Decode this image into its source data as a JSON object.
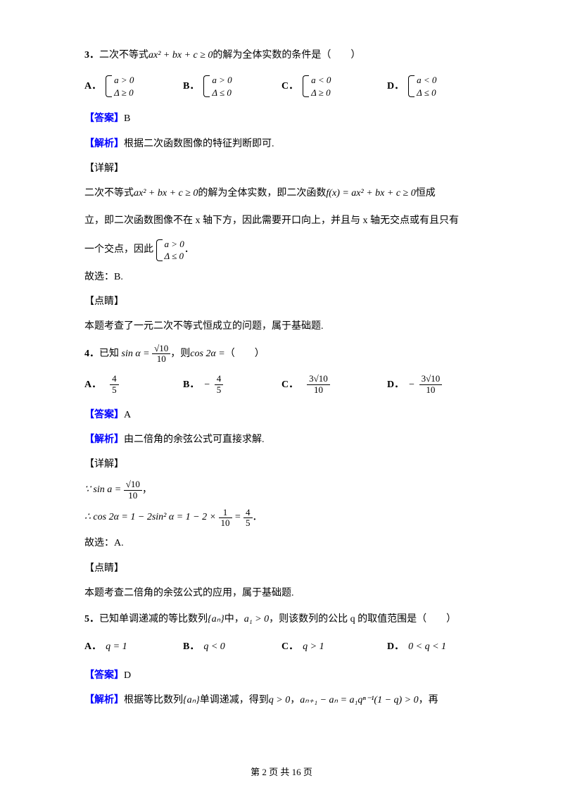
{
  "q3": {
    "number": "3．",
    "stem_pre": "二次不等式",
    "stem_expr": "ax² + bx + c ≥ 0",
    "stem_post": "的解为全体实数的条件是（　　）",
    "options": {
      "A": {
        "label": "A．",
        "r1": "a > 0",
        "r2": "Δ ≥ 0"
      },
      "B": {
        "label": "B．",
        "r1": "a > 0",
        "r2": "Δ ≤ 0"
      },
      "C": {
        "label": "C．",
        "r1": "a < 0",
        "r2": "Δ ≥ 0"
      },
      "D": {
        "label": "D．",
        "r1": "a < 0",
        "r2": "Δ ≤ 0"
      }
    },
    "answer_label": "【答案】",
    "answer": "B",
    "analysis_label": "【解析】",
    "analysis": "根据二次函数图像的特征判断即可.",
    "detail_label": "【详解】",
    "detail_l1a": "二次不等式",
    "detail_l1b": "ax² + bx + c ≥ 0",
    "detail_l1c": "的解为全体实数，即二次函数",
    "detail_l1d": "f(x) = ax² + bx + c ≥ 0",
    "detail_l1e": "恒成",
    "detail_l2": "立，即二次函数图像不在 x 轴下方，因此需要开口向上，并且与 x 轴无交点或有且只有",
    "detail_l3a": "一个交点，因此",
    "detail_brace_r1": "a > 0",
    "detail_brace_r2": "Δ ≤ 0",
    "detail_l3b": "．",
    "so": "故选：B.",
    "comment_label": "【点睛】",
    "comment": "本题考查了一元二次不等式恒成立的问题，属于基础题."
  },
  "q4": {
    "number": "4．",
    "stem_pre": "已知",
    "sin_lhs": "sin α =",
    "sin_num": "√10",
    "sin_den": "10",
    "stem_mid": "，则",
    "cos_expr": "cos 2α =",
    "stem_post": "（　　）",
    "options": {
      "A": {
        "label": "A．",
        "num": "4",
        "den": "5",
        "neg": ""
      },
      "B": {
        "label": "B．",
        "num": "4",
        "den": "5",
        "neg": "−"
      },
      "C": {
        "label": "C．",
        "num": "3√10",
        "den": "10",
        "neg": ""
      },
      "D": {
        "label": "D．",
        "num": "3√10",
        "den": "10",
        "neg": "−"
      }
    },
    "answer_label": "【答案】",
    "answer": "A",
    "analysis_label": "【解析】",
    "analysis": "由二倍角的余弦公式可直接求解.",
    "detail_label": "【详解】",
    "step1_pre": "∵ sin a =",
    "step1_num": "√10",
    "step1_den": "10",
    "step1_post": "，",
    "step2_pre": "∴ cos 2α = 1 − 2sin² α = 1 − 2 ×",
    "step2_f1_num": "1",
    "step2_f1_den": "10",
    "step2_eq": " = ",
    "step2_f2_num": "4",
    "step2_f2_den": "5",
    "step2_post": "．",
    "so": "故选：A.",
    "comment_label": "【点睛】",
    "comment": "本题考查二倍角的余弦公式的应用，属于基础题."
  },
  "q5": {
    "number": "5．",
    "stem_pre": "已知单调递减的等比数列",
    "seq": "{aₙ}",
    "stem_mid": "中，",
    "a1": "a₁ > 0",
    "stem_post": "，则该数列的公比 q 的取值范围是（　　）",
    "options": {
      "A": {
        "label": "A．",
        "text": "q = 1"
      },
      "B": {
        "label": "B．",
        "text": "q < 0"
      },
      "C": {
        "label": "C．",
        "text": "q > 1"
      },
      "D": {
        "label": "D．",
        "text": "0 < q < 1"
      }
    },
    "answer_label": "【答案】",
    "answer": "D",
    "analysis_label": "【解析】",
    "analysis_a": "根据等比数列",
    "analysis_seq": "{aₙ}",
    "analysis_b": "单调递减，得到",
    "analysis_c": "q > 0",
    "analysis_d": "，",
    "analysis_e": "aₙ₊₁ − aₙ = a₁qⁿ⁻¹(1 − q) > 0",
    "analysis_f": "，再"
  },
  "footer": "第 2 页 共 16 页",
  "colors": {
    "text": "#000000",
    "accent": "#0000ff",
    "background": "#ffffff"
  }
}
